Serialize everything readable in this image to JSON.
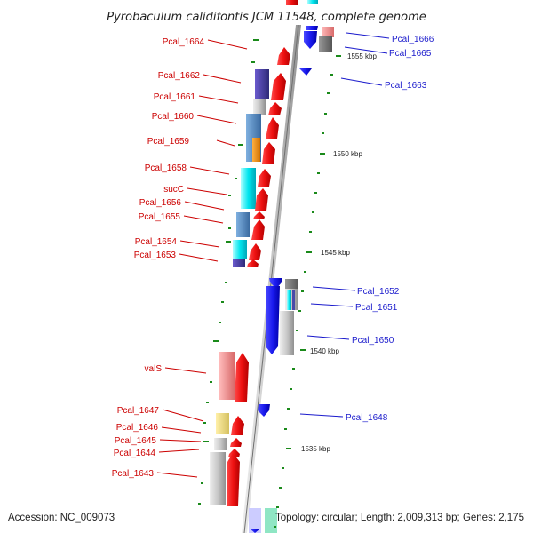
{
  "title": "Pyrobaculum calidifontis JCM 11548, complete genome",
  "footer": {
    "accession": "Accession: NC_009073",
    "summary": "Topology: circular; Length: 2,009,313 bp; Genes: 2,175"
  },
  "scale_labels": [
    "1555 kbp",
    "1550 kbp",
    "1545 kbp",
    "1540 kbp",
    "1535 kbp"
  ],
  "left_labels": [
    "Pcal_1664",
    "Pcal_1662",
    "Pcal_1661",
    "Pcal_1660",
    "Pcal_1659",
    "Pcal_1658",
    "sucC",
    "Pcal_1656",
    "Pcal_1655",
    "Pcal_1654",
    "Pcal_1653",
    "valS",
    "Pcal_1647",
    "Pcal_1646",
    "Pcal_1645",
    "Pcal_1644",
    "Pcal_1643"
  ],
  "right_labels": [
    "Pcal_1666",
    "Pcal_1665",
    "Pcal_1663",
    "Pcal_1652",
    "Pcal_1651",
    "Pcal_1650",
    "Pcal_1648"
  ],
  "colors": {
    "forward_gene": "#ee1111",
    "reverse_gene": "#1a1aee",
    "forward_label": "#cc0000",
    "reverse_label": "#1a1acc",
    "backbone": "#9a9a9a",
    "tick": "#1a8a1a"
  }
}
